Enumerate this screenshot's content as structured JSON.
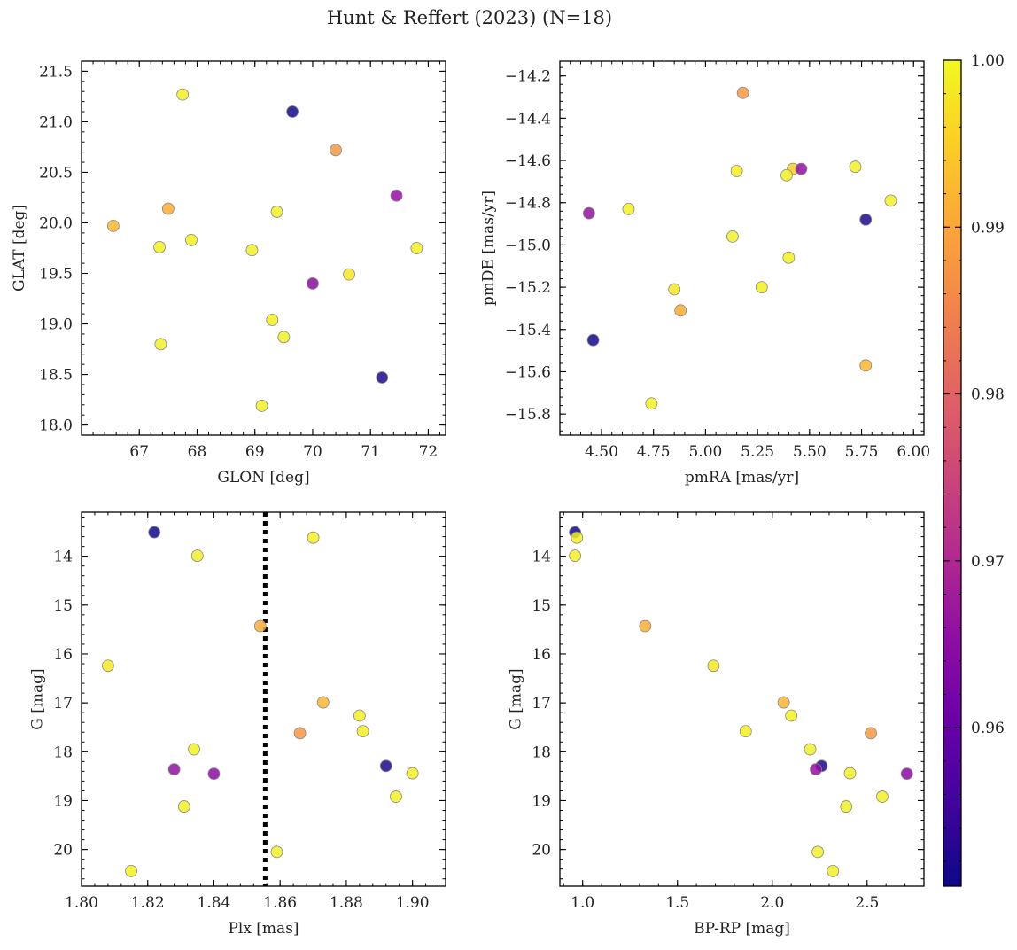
{
  "figure": {
    "title": "Hunt & Reffert (2023) (N=18)",
    "colormap": "plasma",
    "marker_edge": "#888888"
  },
  "colorbar": {
    "min": 0.9505,
    "max": 1.0,
    "ticks": [
      0.96,
      0.97,
      0.98,
      0.99,
      1.0
    ],
    "tick_labels": [
      "0.96",
      "0.97",
      "0.98",
      "0.99",
      "1.00"
    ]
  },
  "chart_data": [
    {
      "type": "scatter",
      "id": "sky",
      "xlabel": "GLON [deg]",
      "ylabel": "GLAT [deg]",
      "xlim": [
        66.0,
        72.3
      ],
      "ylim": [
        17.9,
        21.6
      ],
      "y_inverted": false,
      "xticks": [
        67,
        68,
        69,
        70,
        71,
        72
      ],
      "xtick_labels": [
        "67",
        "68",
        "69",
        "70",
        "71",
        "72"
      ],
      "yticks": [
        18.0,
        18.5,
        19.0,
        19.5,
        20.0,
        20.5,
        21.0,
        21.5
      ],
      "ytick_labels": [
        "18.0",
        "18.5",
        "19.0",
        "19.5",
        "20.0",
        "20.5",
        "21.0",
        "21.5"
      ],
      "points": [
        {
          "x": 67.75,
          "y": 21.27,
          "c": 0.999
        },
        {
          "x": 69.65,
          "y": 21.1,
          "c": 0.951
        },
        {
          "x": 70.4,
          "y": 20.72,
          "c": 0.988
        },
        {
          "x": 71.45,
          "y": 20.27,
          "c": 0.966
        },
        {
          "x": 67.5,
          "y": 20.14,
          "c": 0.991
        },
        {
          "x": 69.38,
          "y": 20.11,
          "c": 0.999
        },
        {
          "x": 66.55,
          "y": 19.97,
          "c": 0.992
        },
        {
          "x": 67.9,
          "y": 19.83,
          "c": 0.999
        },
        {
          "x": 67.35,
          "y": 19.76,
          "c": 0.999
        },
        {
          "x": 71.8,
          "y": 19.75,
          "c": 0.999
        },
        {
          "x": 68.95,
          "y": 19.73,
          "c": 0.999
        },
        {
          "x": 70.63,
          "y": 19.49,
          "c": 0.998
        },
        {
          "x": 70.0,
          "y": 19.4,
          "c": 0.965
        },
        {
          "x": 69.3,
          "y": 19.04,
          "c": 0.999
        },
        {
          "x": 69.5,
          "y": 18.87,
          "c": 0.999
        },
        {
          "x": 67.37,
          "y": 18.8,
          "c": 0.999
        },
        {
          "x": 71.2,
          "y": 18.47,
          "c": 0.952
        },
        {
          "x": 69.12,
          "y": 18.19,
          "c": 0.999
        }
      ]
    },
    {
      "type": "scatter",
      "id": "pm",
      "xlabel": "pmRA [mas/yr]",
      "ylabel": "pmDE [mas/yr]",
      "xlim": [
        4.3,
        6.05
      ],
      "ylim": [
        -15.9,
        -14.13
      ],
      "y_inverted": false,
      "xticks": [
        4.5,
        4.75,
        5.0,
        5.25,
        5.5,
        5.75,
        6.0
      ],
      "xtick_labels": [
        "4.50",
        "4.75",
        "5.00",
        "5.25",
        "5.50",
        "5.75",
        "6.00"
      ],
      "yticks": [
        -15.8,
        -15.6,
        -15.4,
        -15.2,
        -15.0,
        -14.8,
        -14.6,
        -14.4,
        -14.2
      ],
      "ytick_labels": [
        "−15.8",
        "−15.6",
        "−15.4",
        "−15.2",
        "−15.0",
        "−14.8",
        "−14.6",
        "−14.4",
        "−14.2"
      ],
      "points": [
        {
          "x": 5.18,
          "y": -14.28,
          "c": 0.988
        },
        {
          "x": 5.72,
          "y": -14.63,
          "c": 0.999
        },
        {
          "x": 5.15,
          "y": -14.65,
          "c": 0.999
        },
        {
          "x": 5.42,
          "y": -14.64,
          "c": 0.995
        },
        {
          "x": 5.46,
          "y": -14.64,
          "c": 0.966
        },
        {
          "x": 5.39,
          "y": -14.67,
          "c": 0.999
        },
        {
          "x": 5.89,
          "y": -14.79,
          "c": 0.999
        },
        {
          "x": 4.63,
          "y": -14.83,
          "c": 0.999
        },
        {
          "x": 4.44,
          "y": -14.85,
          "c": 0.966
        },
        {
          "x": 5.77,
          "y": -14.88,
          "c": 0.952
        },
        {
          "x": 5.13,
          "y": -14.96,
          "c": 0.999
        },
        {
          "x": 5.4,
          "y": -15.06,
          "c": 0.999
        },
        {
          "x": 4.85,
          "y": -15.21,
          "c": 0.998
        },
        {
          "x": 5.27,
          "y": -15.2,
          "c": 0.999
        },
        {
          "x": 4.88,
          "y": -15.31,
          "c": 0.991
        },
        {
          "x": 4.46,
          "y": -15.45,
          "c": 0.951
        },
        {
          "x": 5.77,
          "y": -15.57,
          "c": 0.992
        },
        {
          "x": 4.74,
          "y": -15.75,
          "c": 0.999
        }
      ]
    },
    {
      "type": "scatter",
      "id": "plx",
      "xlabel": "Plx [mas]",
      "ylabel": "G [mag]",
      "xlim": [
        1.8,
        1.91
      ],
      "ylim": [
        20.75,
        13.1
      ],
      "y_inverted": true,
      "vline": 1.8555,
      "xticks": [
        1.8,
        1.82,
        1.84,
        1.86,
        1.88,
        1.9
      ],
      "xtick_labels": [
        "1.80",
        "1.82",
        "1.84",
        "1.86",
        "1.88",
        "1.90"
      ],
      "yticks": [
        14,
        15,
        16,
        17,
        18,
        19,
        20
      ],
      "ytick_labels": [
        "14",
        "15",
        "16",
        "17",
        "18",
        "19",
        "20"
      ],
      "points": [
        {
          "x": 1.822,
          "y": 13.51,
          "c": 0.951
        },
        {
          "x": 1.87,
          "y": 13.62,
          "c": 0.999
        },
        {
          "x": 1.835,
          "y": 13.99,
          "c": 0.999
        },
        {
          "x": 1.854,
          "y": 15.43,
          "c": 0.991
        },
        {
          "x": 1.808,
          "y": 16.24,
          "c": 0.998
        },
        {
          "x": 1.873,
          "y": 16.99,
          "c": 0.992
        },
        {
          "x": 1.884,
          "y": 17.26,
          "c": 0.999
        },
        {
          "x": 1.866,
          "y": 17.62,
          "c": 0.988
        },
        {
          "x": 1.885,
          "y": 17.58,
          "c": 0.999
        },
        {
          "x": 1.834,
          "y": 17.95,
          "c": 0.999
        },
        {
          "x": 1.892,
          "y": 18.29,
          "c": 0.952
        },
        {
          "x": 1.828,
          "y": 18.36,
          "c": 0.966
        },
        {
          "x": 1.84,
          "y": 18.45,
          "c": 0.965
        },
        {
          "x": 1.9,
          "y": 18.44,
          "c": 0.999
        },
        {
          "x": 1.895,
          "y": 18.92,
          "c": 0.999
        },
        {
          "x": 1.831,
          "y": 19.12,
          "c": 0.999
        },
        {
          "x": 1.859,
          "y": 20.05,
          "c": 0.999
        },
        {
          "x": 1.815,
          "y": 20.44,
          "c": 0.999
        }
      ]
    },
    {
      "type": "scatter",
      "id": "cmd",
      "xlabel": "BP-RP [mag]",
      "ylabel": "G [mag]",
      "xlim": [
        0.88,
        2.8
      ],
      "ylim": [
        20.75,
        13.1
      ],
      "y_inverted": true,
      "xticks": [
        1.0,
        1.5,
        2.0,
        2.5
      ],
      "xtick_labels": [
        "1.0",
        "1.5",
        "2.0",
        "2.5"
      ],
      "yticks": [
        14,
        15,
        16,
        17,
        18,
        19,
        20
      ],
      "ytick_labels": [
        "14",
        "15",
        "16",
        "17",
        "18",
        "19",
        "20"
      ],
      "points": [
        {
          "x": 0.96,
          "y": 13.51,
          "c": 0.951
        },
        {
          "x": 0.97,
          "y": 13.62,
          "c": 0.999
        },
        {
          "x": 0.96,
          "y": 13.99,
          "c": 0.999
        },
        {
          "x": 1.33,
          "y": 15.43,
          "c": 0.991
        },
        {
          "x": 1.69,
          "y": 16.24,
          "c": 0.998
        },
        {
          "x": 2.06,
          "y": 16.99,
          "c": 0.992
        },
        {
          "x": 2.1,
          "y": 17.26,
          "c": 0.999
        },
        {
          "x": 2.52,
          "y": 17.62,
          "c": 0.988
        },
        {
          "x": 1.86,
          "y": 17.58,
          "c": 0.999
        },
        {
          "x": 2.2,
          "y": 17.95,
          "c": 0.999
        },
        {
          "x": 2.26,
          "y": 18.29,
          "c": 0.952
        },
        {
          "x": 2.23,
          "y": 18.36,
          "c": 0.966
        },
        {
          "x": 2.71,
          "y": 18.45,
          "c": 0.965
        },
        {
          "x": 2.41,
          "y": 18.44,
          "c": 0.999
        },
        {
          "x": 2.58,
          "y": 18.92,
          "c": 0.999
        },
        {
          "x": 2.39,
          "y": 19.12,
          "c": 0.999
        },
        {
          "x": 2.24,
          "y": 20.05,
          "c": 0.999
        },
        {
          "x": 2.32,
          "y": 20.44,
          "c": 0.999
        }
      ]
    }
  ]
}
